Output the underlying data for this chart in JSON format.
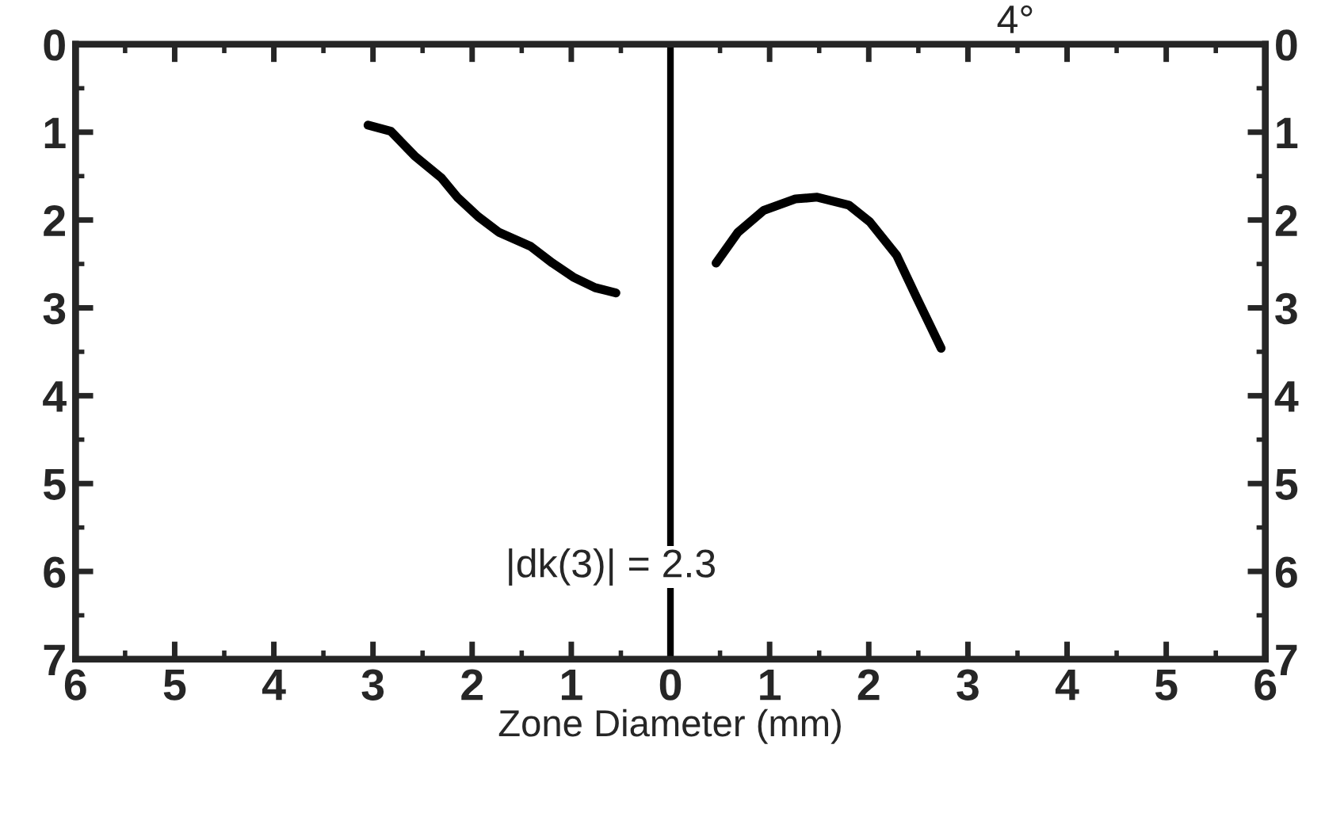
{
  "chart_data": {
    "type": "line",
    "xlabel": "Zone Diameter (mm)",
    "annotations": [
      "|dk(3)| = 2.3",
      "4°"
    ],
    "series": [
      {
        "color": "#000000",
        "x": [
          -3.05,
          -2.82,
          -2.58,
          -2.31,
          -2.15,
          -1.94,
          -1.73,
          -1.41,
          -1.19,
          -0.98,
          -0.76,
          -0.55
        ],
        "values": [
          0.92,
          0.99,
          1.27,
          1.52,
          1.74,
          1.96,
          2.14,
          2.3,
          2.49,
          2.65,
          2.77,
          2.83
        ]
      },
      {
        "color": "#000000",
        "x": [
          0.46,
          0.68,
          0.94,
          1.26,
          1.48,
          1.8,
          2.01,
          2.28,
          2.49,
          2.73
        ],
        "values": [
          2.49,
          2.14,
          1.89,
          1.76,
          1.74,
          1.83,
          2.02,
          2.4,
          2.9,
          3.46
        ]
      }
    ],
    "xlim": [
      -6,
      6
    ],
    "xticks": [
      {
        "value": -6,
        "label": "6"
      },
      {
        "value": -5,
        "label": "5"
      },
      {
        "value": -4,
        "label": "4"
      },
      {
        "value": -3,
        "label": "3"
      },
      {
        "value": -2,
        "label": "2"
      },
      {
        "value": -1,
        "label": "1"
      },
      0,
      1,
      2,
      3,
      4,
      5,
      6
    ],
    "ylim": [
      7,
      0
    ],
    "yticks": [
      0,
      1,
      2,
      3,
      4,
      5,
      6,
      7
    ],
    "y2lim": [
      7,
      0
    ],
    "y2ticks": [
      0,
      1,
      2,
      3,
      4,
      5,
      6,
      7
    ],
    "ref_lines": [
      {
        "axis": "x",
        "value": 0,
        "color": "#000000",
        "line_style": "solid"
      }
    ],
    "grid": false,
    "legend": false,
    "marker": "none",
    "line_style": "solid"
  }
}
